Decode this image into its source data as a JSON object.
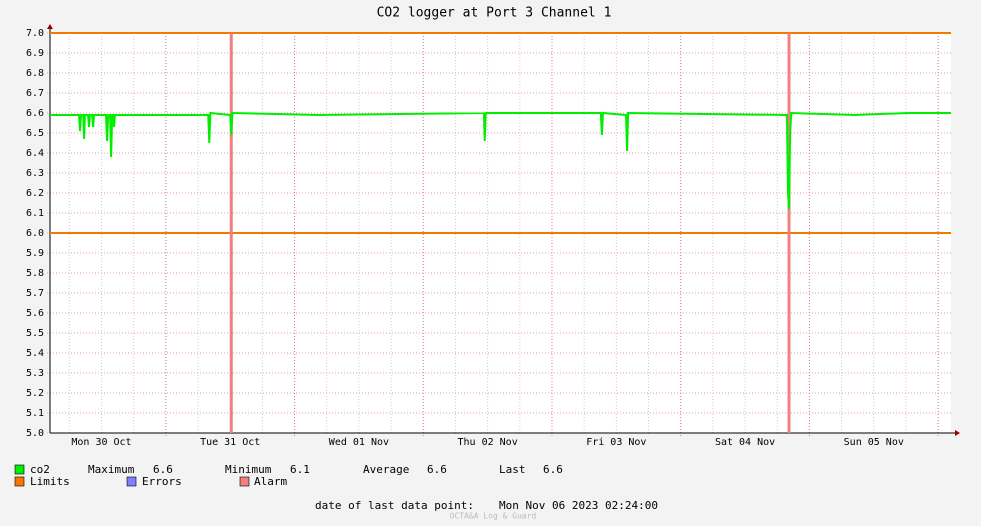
{
  "chart_data": {
    "type": "line",
    "title": "CO2 logger at Port 3 Channel 1",
    "xlim": [
      0,
      168
    ],
    "ylim": [
      5,
      7
    ],
    "yticks": [
      {
        "value": 5,
        "label": "5.0"
      },
      5.1,
      5.2,
      5.3,
      5.4,
      5.5,
      5.6,
      5.7,
      5.8,
      5.9,
      {
        "value": 6,
        "label": "6.0"
      },
      6.1,
      6.2,
      6.3,
      6.4,
      6.5,
      6.6,
      6.7,
      6.8,
      6.9,
      {
        "value": 7,
        "label": "7.0"
      }
    ],
    "xticks": [
      {
        "value": 9.6,
        "label": "Mon 30 Oct"
      },
      {
        "value": 33.6,
        "label": "Tue 31 Oct"
      },
      {
        "value": 57.6,
        "label": "Wed 01 Nov"
      },
      {
        "value": 81.6,
        "label": "Thu 02 Nov"
      },
      {
        "value": 105.6,
        "label": "Fri 03 Nov"
      },
      {
        "value": 129.6,
        "label": "Sat 04 Nov"
      },
      {
        "value": 153.6,
        "label": "Sun 05 Nov"
      }
    ],
    "xgrid": [
      21.6,
      45.6,
      69.6,
      93.6,
      117.6,
      141.6,
      165.6
    ],
    "grid": true,
    "series": [
      {
        "name": "co2",
        "color": "#00ee00",
        "x": [
          0,
          5.4,
          5.6,
          5.8,
          6.2,
          6.35,
          6.5,
          7.1,
          7.28,
          7.45,
          7.85,
          8.03,
          8.2,
          10.45,
          10.65,
          10.85,
          11.2,
          11.39,
          11.6,
          11.8,
          11.95,
          12.1,
          20,
          29.5,
          29.7,
          29.9,
          33.6,
          33.8,
          34.0,
          50,
          80.9,
          81.06,
          81.25,
          102.7,
          102.9,
          103.1,
          107.4,
          107.6,
          107.8,
          137.4,
          137.6,
          137.8,
          138.0,
          138.2,
          150,
          160,
          168
        ],
        "values": [
          6.59,
          6.59,
          6.51,
          6.59,
          6.59,
          6.47,
          6.59,
          6.59,
          6.53,
          6.59,
          6.59,
          6.53,
          6.59,
          6.59,
          6.46,
          6.59,
          6.59,
          6.38,
          6.59,
          6.59,
          6.53,
          6.59,
          6.59,
          6.59,
          6.45,
          6.6,
          6.59,
          6.49,
          6.6,
          6.59,
          6.6,
          6.46,
          6.6,
          6.6,
          6.49,
          6.6,
          6.59,
          6.41,
          6.6,
          6.59,
          6.2,
          6.12,
          6.49,
          6.6,
          6.59,
          6.6,
          6.6
        ]
      }
    ],
    "limits": {
      "name": "Limits",
      "color": "#f57900",
      "values": [
        7,
        6
      ]
    },
    "errors": {
      "name": "Errors",
      "color": "#7f7fff"
    },
    "alarms": {
      "name": "Alarm",
      "color": "#f08080",
      "x": [
        33.8,
        137.8
      ]
    },
    "stats": [
      {
        "label": "Maximum",
        "value": 6.6
      },
      {
        "label": "Minimum",
        "value": 6.1
      },
      {
        "label": "Average",
        "value": 6.6
      },
      {
        "label": "Last",
        "value": 6.6
      }
    ],
    "footer": {
      "label": "date of last data point:",
      "value": "Mon Nov 06 2023 02:24:00"
    },
    "watermark": "OCTA&A Log & Guard"
  }
}
